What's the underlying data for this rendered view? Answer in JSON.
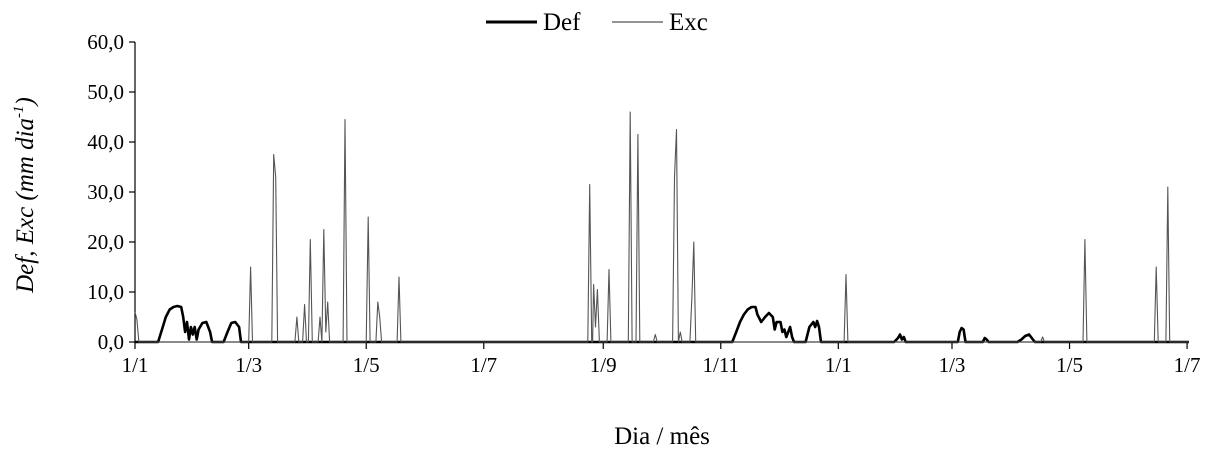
{
  "chart_data": {
    "type": "line",
    "legend": {
      "placement": "top-center",
      "entries": [
        "Def",
        "Exc"
      ]
    },
    "xlabel": "Dia / mês",
    "ylabel": {
      "base": "Def, Exc (mm dia",
      "superscript": "-1",
      "suffix": ")"
    },
    "ylim": [
      0,
      60
    ],
    "y_ticks": [
      "0,0",
      "10,0",
      "20,0",
      "30,0",
      "40,0",
      "50,0",
      "60,0"
    ],
    "x_unit": "days since first 1/1",
    "xlim": [
      0,
      547
    ],
    "x_ticks": [
      {
        "day": 0,
        "label": "1/1"
      },
      {
        "day": 59,
        "label": "1/3"
      },
      {
        "day": 120,
        "label": "1/5"
      },
      {
        "day": 181,
        "label": "1/7"
      },
      {
        "day": 243,
        "label": "1/9"
      },
      {
        "day": 304,
        "label": "1/11"
      },
      {
        "day": 365,
        "label": "1/1"
      },
      {
        "day": 424,
        "label": "1/3"
      },
      {
        "day": 485,
        "label": "1/5"
      },
      {
        "day": 546,
        "label": "1/7"
      }
    ],
    "grid": false,
    "series": [
      {
        "name": "Def",
        "color": "#000000",
        "style": "thick",
        "points": [
          [
            0,
            0
          ],
          [
            12,
            0
          ],
          [
            14,
            2.5
          ],
          [
            16,
            5
          ],
          [
            18,
            6.5
          ],
          [
            20,
            7
          ],
          [
            22,
            7.2
          ],
          [
            24,
            7
          ],
          [
            25,
            5
          ],
          [
            26,
            2
          ],
          [
            27,
            4
          ],
          [
            28,
            0.5
          ],
          [
            29,
            3
          ],
          [
            30,
            1.5
          ],
          [
            31,
            3
          ],
          [
            32,
            0.5
          ],
          [
            33,
            2.5
          ],
          [
            35,
            3.8
          ],
          [
            37,
            4
          ],
          [
            39,
            2
          ],
          [
            40,
            0
          ],
          [
            46,
            0
          ],
          [
            48,
            2
          ],
          [
            50,
            3.8
          ],
          [
            52,
            4
          ],
          [
            54,
            3
          ],
          [
            55,
            0
          ],
          [
            310,
            0
          ],
          [
            312,
            2
          ],
          [
            314,
            4
          ],
          [
            316,
            5.5
          ],
          [
            318,
            6.5
          ],
          [
            320,
            7
          ],
          [
            322,
            7
          ],
          [
            323,
            5.5
          ],
          [
            325,
            4
          ],
          [
            327,
            5
          ],
          [
            329,
            5.8
          ],
          [
            331,
            5
          ],
          [
            332,
            2.5
          ],
          [
            333,
            4
          ],
          [
            335,
            4
          ],
          [
            336,
            2
          ],
          [
            337,
            2.5
          ],
          [
            338,
            1
          ],
          [
            340,
            3
          ],
          [
            341,
            1
          ],
          [
            342,
            0
          ],
          [
            348,
            0
          ],
          [
            350,
            3
          ],
          [
            352,
            4
          ],
          [
            353,
            3
          ],
          [
            354,
            4.2
          ],
          [
            355,
            3
          ],
          [
            356,
            0
          ],
          [
            394,
            0
          ],
          [
            396,
            0.8
          ],
          [
            397,
            1.5
          ],
          [
            398,
            0.5
          ],
          [
            399,
            1
          ],
          [
            400,
            0
          ],
          [
            427,
            0
          ],
          [
            428,
            2
          ],
          [
            429,
            2.8
          ],
          [
            430,
            2.5
          ],
          [
            431,
            0
          ],
          [
            440,
            0
          ],
          [
            441,
            0.8
          ],
          [
            442,
            0.5
          ],
          [
            443,
            0
          ],
          [
            458,
            0
          ],
          [
            460,
            0.5
          ],
          [
            462,
            1.2
          ],
          [
            464,
            1.5
          ],
          [
            466,
            0.5
          ],
          [
            467,
            0
          ],
          [
            547,
            0
          ]
        ]
      },
      {
        "name": "Exc",
        "color": "#555555",
        "style": "thin",
        "points": [
          [
            0,
            6
          ],
          [
            1,
            4.5
          ],
          [
            2,
            0
          ],
          [
            59,
            0
          ],
          [
            60,
            15
          ],
          [
            61,
            0
          ],
          [
            71,
            0
          ],
          [
            72,
            37.5
          ],
          [
            73,
            33
          ],
          [
            74,
            0
          ],
          [
            83,
            0
          ],
          [
            84,
            5
          ],
          [
            85,
            0
          ],
          [
            87,
            0
          ],
          [
            88,
            7.5
          ],
          [
            89,
            0
          ],
          [
            90,
            0
          ],
          [
            91,
            20.5
          ],
          [
            92,
            0
          ],
          [
            95,
            0
          ],
          [
            96,
            5
          ],
          [
            97,
            0
          ],
          [
            98,
            22.5
          ],
          [
            99,
            2
          ],
          [
            100,
            8
          ],
          [
            101,
            0
          ],
          [
            108,
            0
          ],
          [
            109,
            44.5
          ],
          [
            110,
            0
          ],
          [
            120,
            0
          ],
          [
            121,
            25
          ],
          [
            122,
            0
          ],
          [
            125,
            0
          ],
          [
            126,
            8
          ],
          [
            127,
            5
          ],
          [
            128,
            0
          ],
          [
            136,
            0
          ],
          [
            137,
            13
          ],
          [
            138,
            0
          ],
          [
            235,
            0
          ],
          [
            236,
            31.5
          ],
          [
            237,
            0
          ],
          [
            237.5,
            0
          ],
          [
            238,
            11.5
          ],
          [
            239,
            3
          ],
          [
            240,
            10.5
          ],
          [
            241,
            0
          ],
          [
            245,
            0
          ],
          [
            246,
            14.5
          ],
          [
            247,
            0
          ],
          [
            256,
            0
          ],
          [
            257,
            46
          ],
          [
            258,
            0
          ],
          [
            260,
            0
          ],
          [
            261,
            41.5
          ],
          [
            262,
            0
          ],
          [
            269,
            0
          ],
          [
            270,
            1.5
          ],
          [
            271,
            0
          ],
          [
            279,
            0
          ],
          [
            280,
            33
          ],
          [
            281,
            42.5
          ],
          [
            282,
            0
          ],
          [
            283,
            2
          ],
          [
            284,
            0
          ],
          [
            288,
            0
          ],
          [
            289,
            9
          ],
          [
            290,
            20
          ],
          [
            291,
            0
          ],
          [
            368,
            0
          ],
          [
            369,
            13.5
          ],
          [
            370,
            0
          ],
          [
            470,
            0
          ],
          [
            471,
            1
          ],
          [
            472,
            0
          ],
          [
            492,
            0
          ],
          [
            493,
            20.5
          ],
          [
            494,
            0
          ],
          [
            529,
            0
          ],
          [
            530,
            15
          ],
          [
            531,
            0
          ],
          [
            535,
            0
          ],
          [
            536,
            31
          ],
          [
            537,
            0
          ],
          [
            547,
            0
          ]
        ]
      }
    ]
  }
}
